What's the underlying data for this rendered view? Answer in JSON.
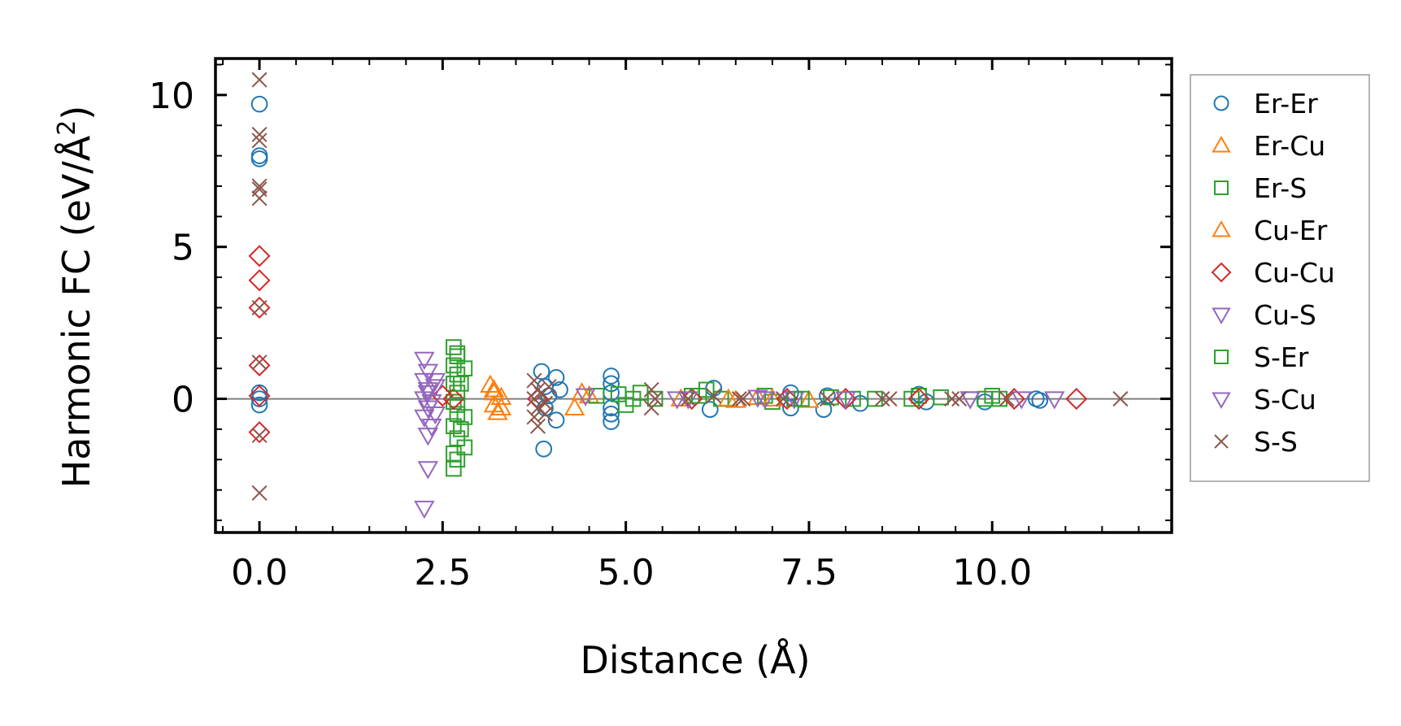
{
  "chart_data": {
    "type": "scatter",
    "xlabel": "Distance (Å)",
    "ylabel_main": "Harmonic FC (eV/Å",
    "ylabel_sup": "2",
    "ylabel_close": ")",
    "xlim": [
      -0.6,
      12.45
    ],
    "ylim": [
      -4.4,
      11.2
    ],
    "xticks": [
      0.0,
      2.5,
      5.0,
      7.5,
      10.0
    ],
    "xtick_labels": [
      "0.0",
      "2.5",
      "5.0",
      "7.5",
      "10.0"
    ],
    "yticks": [
      0,
      5,
      10
    ],
    "ytick_labels": [
      "0",
      "5",
      "10"
    ],
    "zero_line": 0,
    "legend_position": "outside-right",
    "series": [
      {
        "name": "Er-Er",
        "marker": "circle",
        "color": "#1f77b4",
        "points": [
          [
            0,
            9.7
          ],
          [
            0,
            8.0
          ],
          [
            0,
            7.9
          ],
          [
            0,
            0.2
          ],
          [
            0,
            0.0
          ],
          [
            0,
            -0.2
          ],
          [
            3.85,
            0.9
          ],
          [
            3.9,
            0.4
          ],
          [
            3.95,
            0.1
          ],
          [
            3.9,
            -0.3
          ],
          [
            3.88,
            -1.65
          ],
          [
            4.05,
            0.7
          ],
          [
            4.05,
            -0.7
          ],
          [
            4.1,
            0.3
          ],
          [
            4.8,
            0.75
          ],
          [
            4.8,
            0.5
          ],
          [
            4.8,
            0.2
          ],
          [
            4.8,
            -0.3
          ],
          [
            4.8,
            -0.5
          ],
          [
            4.8,
            -0.75
          ],
          [
            6.15,
            -0.35
          ],
          [
            6.2,
            0.35
          ],
          [
            7.25,
            0.2
          ],
          [
            7.25,
            -0.3
          ],
          [
            7.7,
            -0.35
          ],
          [
            7.75,
            0.1
          ],
          [
            8.2,
            -0.15
          ],
          [
            9.0,
            0.15
          ],
          [
            9.1,
            -0.1
          ],
          [
            9.9,
            -0.1
          ],
          [
            10.6,
            0.0
          ],
          [
            10.65,
            -0.05
          ]
        ]
      },
      {
        "name": "Er-Cu",
        "marker": "triangle-up",
        "color": "#ff7f0e",
        "points": [
          [
            3.15,
            0.45
          ],
          [
            3.2,
            0.2
          ],
          [
            3.2,
            -0.2
          ],
          [
            3.25,
            -0.45
          ],
          [
            3.3,
            0.05
          ],
          [
            4.3,
            -0.3
          ],
          [
            4.5,
            0.1
          ],
          [
            5.75,
            0.0
          ],
          [
            6.5,
            -0.05
          ],
          [
            6.8,
            0.05
          ],
          [
            7.5,
            -0.05
          ]
        ]
      },
      {
        "name": "Er-S",
        "marker": "square",
        "color": "#2ca02c",
        "points": [
          [
            2.65,
            1.7
          ],
          [
            2.7,
            1.4
          ],
          [
            2.65,
            1.1
          ],
          [
            2.7,
            0.8
          ],
          [
            2.65,
            0.5
          ],
          [
            2.7,
            0.2
          ],
          [
            2.65,
            -0.1
          ],
          [
            2.7,
            -0.5
          ],
          [
            2.65,
            -0.9
          ],
          [
            2.7,
            -1.3
          ],
          [
            2.65,
            -1.8
          ],
          [
            2.65,
            -2.3
          ],
          [
            2.8,
            1.0
          ],
          [
            2.8,
            -0.6
          ],
          [
            2.8,
            -1.6
          ],
          [
            4.6,
            0.1
          ],
          [
            4.9,
            0.15
          ],
          [
            5.0,
            -0.2
          ],
          [
            5.2,
            0.2
          ],
          [
            5.4,
            0.0
          ],
          [
            5.9,
            0.1
          ],
          [
            6.1,
            0.3
          ],
          [
            6.3,
            0.0
          ],
          [
            6.9,
            0.1
          ],
          [
            7.0,
            -0.1
          ],
          [
            7.3,
            0.0
          ],
          [
            7.8,
            0.05
          ],
          [
            8.1,
            0.0
          ],
          [
            8.4,
            0.0
          ],
          [
            8.9,
            0.0
          ],
          [
            9.0,
            0.1
          ],
          [
            9.3,
            0.05
          ],
          [
            9.9,
            0.0
          ],
          [
            10.0,
            0.1
          ],
          [
            10.1,
            0.0
          ]
        ]
      },
      {
        "name": "Cu-Er",
        "marker": "triangle-up",
        "color": "#ff7f0e",
        "points": [
          [
            3.2,
            0.3
          ],
          [
            3.3,
            -0.3
          ],
          [
            4.4,
            0.2
          ],
          [
            6.4,
            0.0
          ],
          [
            7.0,
            0.0
          ]
        ]
      },
      {
        "name": "Cu-Cu",
        "marker": "diamond",
        "color": "#d62728",
        "points": [
          [
            0,
            4.7
          ],
          [
            0,
            3.9
          ],
          [
            0,
            3.0
          ],
          [
            0,
            1.1
          ],
          [
            0,
            -1.1
          ],
          [
            0,
            0.1
          ],
          [
            2.65,
            0.0
          ],
          [
            2.5,
            0.1
          ],
          [
            3.8,
            0.0
          ],
          [
            5.9,
            0.0
          ],
          [
            7.2,
            0.0
          ],
          [
            8.0,
            0.0
          ],
          [
            9.0,
            0.0
          ],
          [
            10.3,
            0.0
          ],
          [
            11.15,
            0.0
          ]
        ]
      },
      {
        "name": "Cu-S",
        "marker": "triangle-down",
        "color": "#9467bd",
        "points": [
          [
            2.25,
            1.3
          ],
          [
            2.3,
            0.9
          ],
          [
            2.25,
            0.6
          ],
          [
            2.3,
            0.3
          ],
          [
            2.25,
            0.0
          ],
          [
            2.3,
            -0.3
          ],
          [
            2.25,
            -0.6
          ],
          [
            2.35,
            -0.9
          ],
          [
            2.3,
            -1.2
          ],
          [
            2.3,
            -2.3
          ],
          [
            2.25,
            -3.6
          ],
          [
            2.4,
            0.6
          ],
          [
            2.4,
            -0.5
          ],
          [
            4.45,
            0.1
          ],
          [
            5.7,
            0.0
          ],
          [
            5.85,
            0.0
          ],
          [
            6.8,
            0.05
          ],
          [
            7.3,
            0.0
          ],
          [
            8.0,
            0.0
          ],
          [
            9.7,
            0.0
          ],
          [
            10.4,
            0.0
          ],
          [
            10.85,
            0.0
          ]
        ]
      },
      {
        "name": "S-Er",
        "marker": "square",
        "color": "#2ca02c",
        "points": [
          [
            2.7,
            1.5
          ],
          [
            2.75,
            0.5
          ],
          [
            2.7,
            -0.2
          ],
          [
            2.75,
            -1.0
          ],
          [
            2.7,
            -2.0
          ],
          [
            5.1,
            0.0
          ],
          [
            6.0,
            0.1
          ],
          [
            7.4,
            0.0
          ]
        ]
      },
      {
        "name": "S-Cu",
        "marker": "triangle-down",
        "color": "#9467bd",
        "points": [
          [
            2.3,
            0.2
          ],
          [
            2.35,
            -0.1
          ],
          [
            2.4,
            0.4
          ],
          [
            6.9,
            0.0
          ],
          [
            9.7,
            0.0
          ]
        ]
      },
      {
        "name": "S-S",
        "marker": "x",
        "color": "#8c564b",
        "points": [
          [
            0,
            10.5
          ],
          [
            0,
            8.7
          ],
          [
            0,
            8.5
          ],
          [
            0,
            7.0
          ],
          [
            0,
            6.9
          ],
          [
            0,
            6.6
          ],
          [
            0,
            3.0
          ],
          [
            0,
            1.2
          ],
          [
            0,
            -1.2
          ],
          [
            0,
            -3.1
          ],
          [
            3.75,
            0.6
          ],
          [
            3.8,
            0.3
          ],
          [
            3.75,
            0.0
          ],
          [
            3.8,
            -0.3
          ],
          [
            3.75,
            -0.6
          ],
          [
            3.85,
            0.15
          ],
          [
            3.9,
            -0.15
          ],
          [
            3.95,
            0.4
          ],
          [
            3.9,
            -0.5
          ],
          [
            3.8,
            -0.9
          ],
          [
            5.35,
            0.3
          ],
          [
            5.4,
            0.0
          ],
          [
            5.35,
            -0.3
          ],
          [
            5.85,
            0.0
          ],
          [
            6.2,
            0.1
          ],
          [
            6.55,
            0.0
          ],
          [
            6.6,
            0.0
          ],
          [
            7.15,
            0.0
          ],
          [
            7.75,
            0.0
          ],
          [
            8.5,
            0.0
          ],
          [
            8.6,
            0.0
          ],
          [
            9.45,
            0.0
          ],
          [
            9.55,
            0.0
          ],
          [
            10.2,
            0.0
          ],
          [
            11.75,
            0.0
          ]
        ]
      }
    ]
  }
}
